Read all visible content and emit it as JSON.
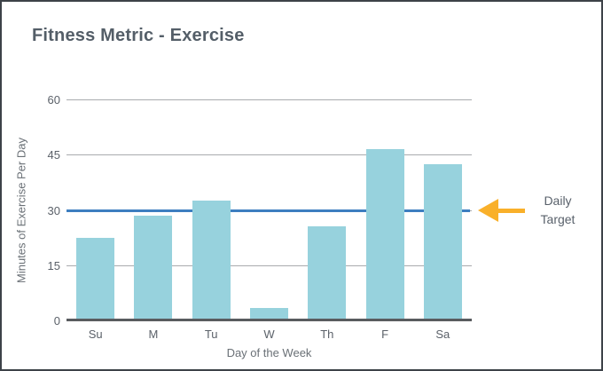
{
  "chart_data": {
    "type": "bar",
    "title": "Fitness Metric - Exercise",
    "categories": [
      "Su",
      "M",
      "Tu",
      "W",
      "Th",
      "F",
      "Sa"
    ],
    "values": [
      22,
      28,
      32,
      3,
      25,
      46,
      42
    ],
    "xlabel": "Day of the Week",
    "ylabel": "Minutes of Exercise Per Day",
    "ylim": [
      0,
      60
    ],
    "yticks": [
      0,
      15,
      30,
      45,
      60
    ],
    "grid": true,
    "legend": "none",
    "target_line": {
      "value": 30,
      "label": "Daily Target"
    },
    "colors": {
      "bar": "#97d2dd",
      "target_line": "#3d7ec0",
      "arrow": "#f9b02a",
      "title_text": "#545e68",
      "tick_text": "#5b6169",
      "gridline": "#a9abae",
      "axis_line": "#595c5f",
      "frame_border": "#3d4248"
    }
  }
}
